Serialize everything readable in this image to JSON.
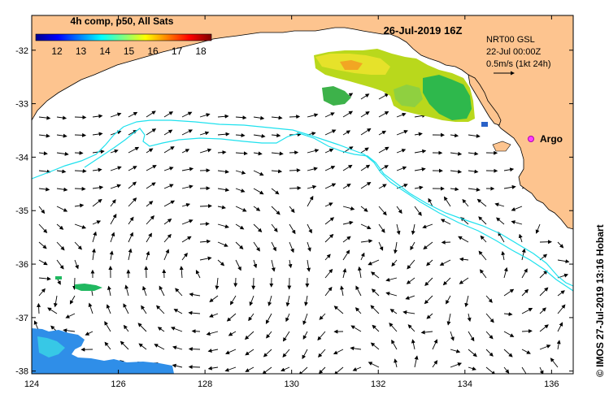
{
  "map": {
    "title": "26-Jul-2019 16Z",
    "product": "4h comp, p50, All Sats",
    "colorbar_ticks": [
      "12",
      "13",
      "14",
      "15",
      "16",
      "17",
      "18"
    ],
    "colorbar_colors": [
      "#00008f",
      "#0000ff",
      "#0080ff",
      "#00ffff",
      "#80ff80",
      "#ffff00",
      "#ff8000",
      "#ff0000",
      "#800000"
    ],
    "info": {
      "line1": "NRT00 GSL",
      "line2": "22-Jul 00:00Z",
      "scale": "0.5m/s (1kt 24h)"
    },
    "marker_label": "Argo",
    "credit": "© IMOS 27-Jul-2019 13:16 Hobart",
    "x_ticks": [
      "124",
      "126",
      "128",
      "130",
      "132",
      "134",
      "136"
    ],
    "y_ticks": [
      "-32",
      "-33",
      "-34",
      "-35",
      "-36",
      "-37",
      "-38"
    ],
    "lon_range": [
      124,
      136.5
    ],
    "lat_range": [
      -38.05,
      -31.35
    ],
    "land_color": "#fdc48f",
    "contour_color": "#1ee1ee"
  }
}
